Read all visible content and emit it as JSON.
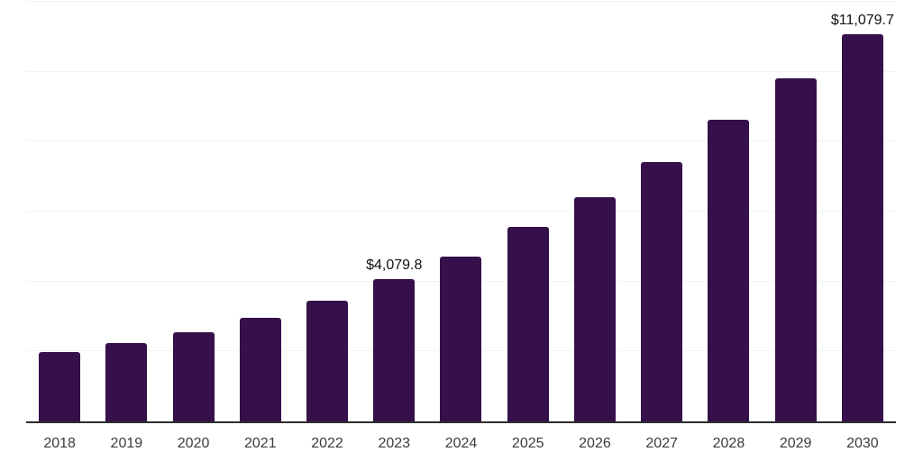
{
  "chart_data": {
    "type": "bar",
    "title": "",
    "xlabel": "",
    "ylabel": "",
    "categories": [
      "2018",
      "2019",
      "2020",
      "2021",
      "2022",
      "2023",
      "2024",
      "2025",
      "2026",
      "2027",
      "2028",
      "2029",
      "2030"
    ],
    "values": [
      1980,
      2230,
      2550,
      2960,
      3450,
      4079.8,
      4700,
      5550,
      6420,
      7420,
      8630,
      9810,
      11079.7
    ],
    "data_labels": [
      "",
      "",
      "",
      "",
      "",
      "$4,079.8",
      "",
      "",
      "",
      "",
      "",
      "",
      "$11,079.7"
    ],
    "ylim": [
      0,
      12000
    ],
    "gridline_step": 2000,
    "grid": "horizontal-only",
    "legend": "none",
    "bar_color": "#35104b",
    "axis_line_color": "#2d2d2d",
    "gridline_color": "#f3f3f5",
    "tick_label_color": "#3c3c3c",
    "value_label_color": "#111111"
  }
}
